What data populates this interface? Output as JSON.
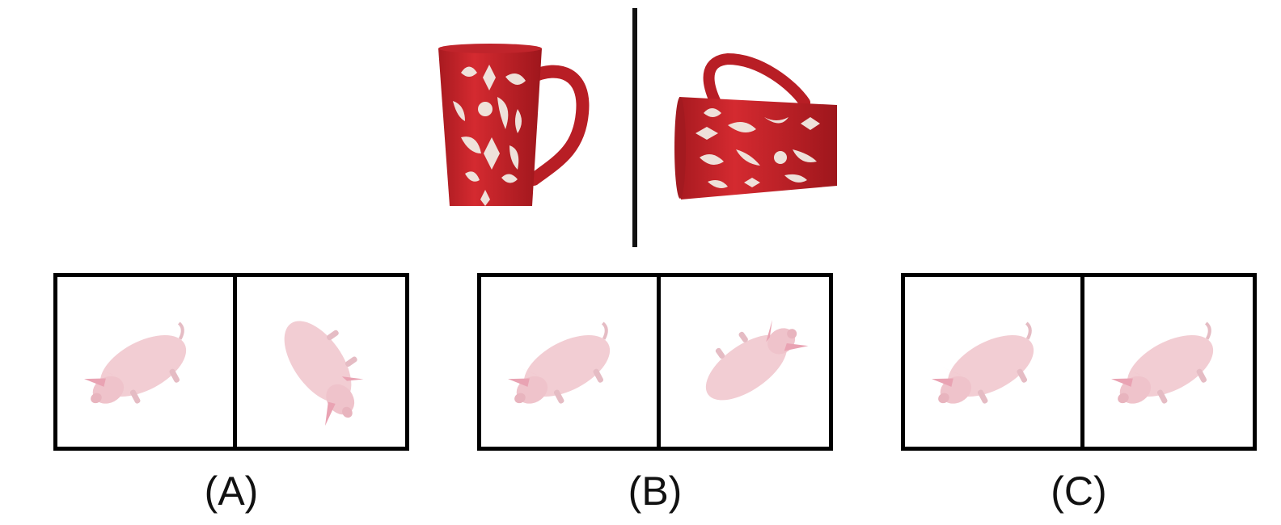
{
  "reference": {
    "left_view": "mug-upright",
    "right_view": "mug-rotated"
  },
  "colors": {
    "mug_red": "#c8232a",
    "mug_pattern": "#f1ece4",
    "pig_pink": "#f2cdd3",
    "pig_shadow": "#d9a9b2",
    "ear_pink": "#e9a3b3",
    "frame": "#000000"
  },
  "options": [
    {
      "label": "(A)",
      "left_pose": "pig-standard",
      "right_pose": "pig-rotated-a"
    },
    {
      "label": "(B)",
      "left_pose": "pig-standard",
      "right_pose": "pig-rotated-b"
    },
    {
      "label": "(C)",
      "left_pose": "pig-standard",
      "right_pose": "pig-standard"
    }
  ]
}
